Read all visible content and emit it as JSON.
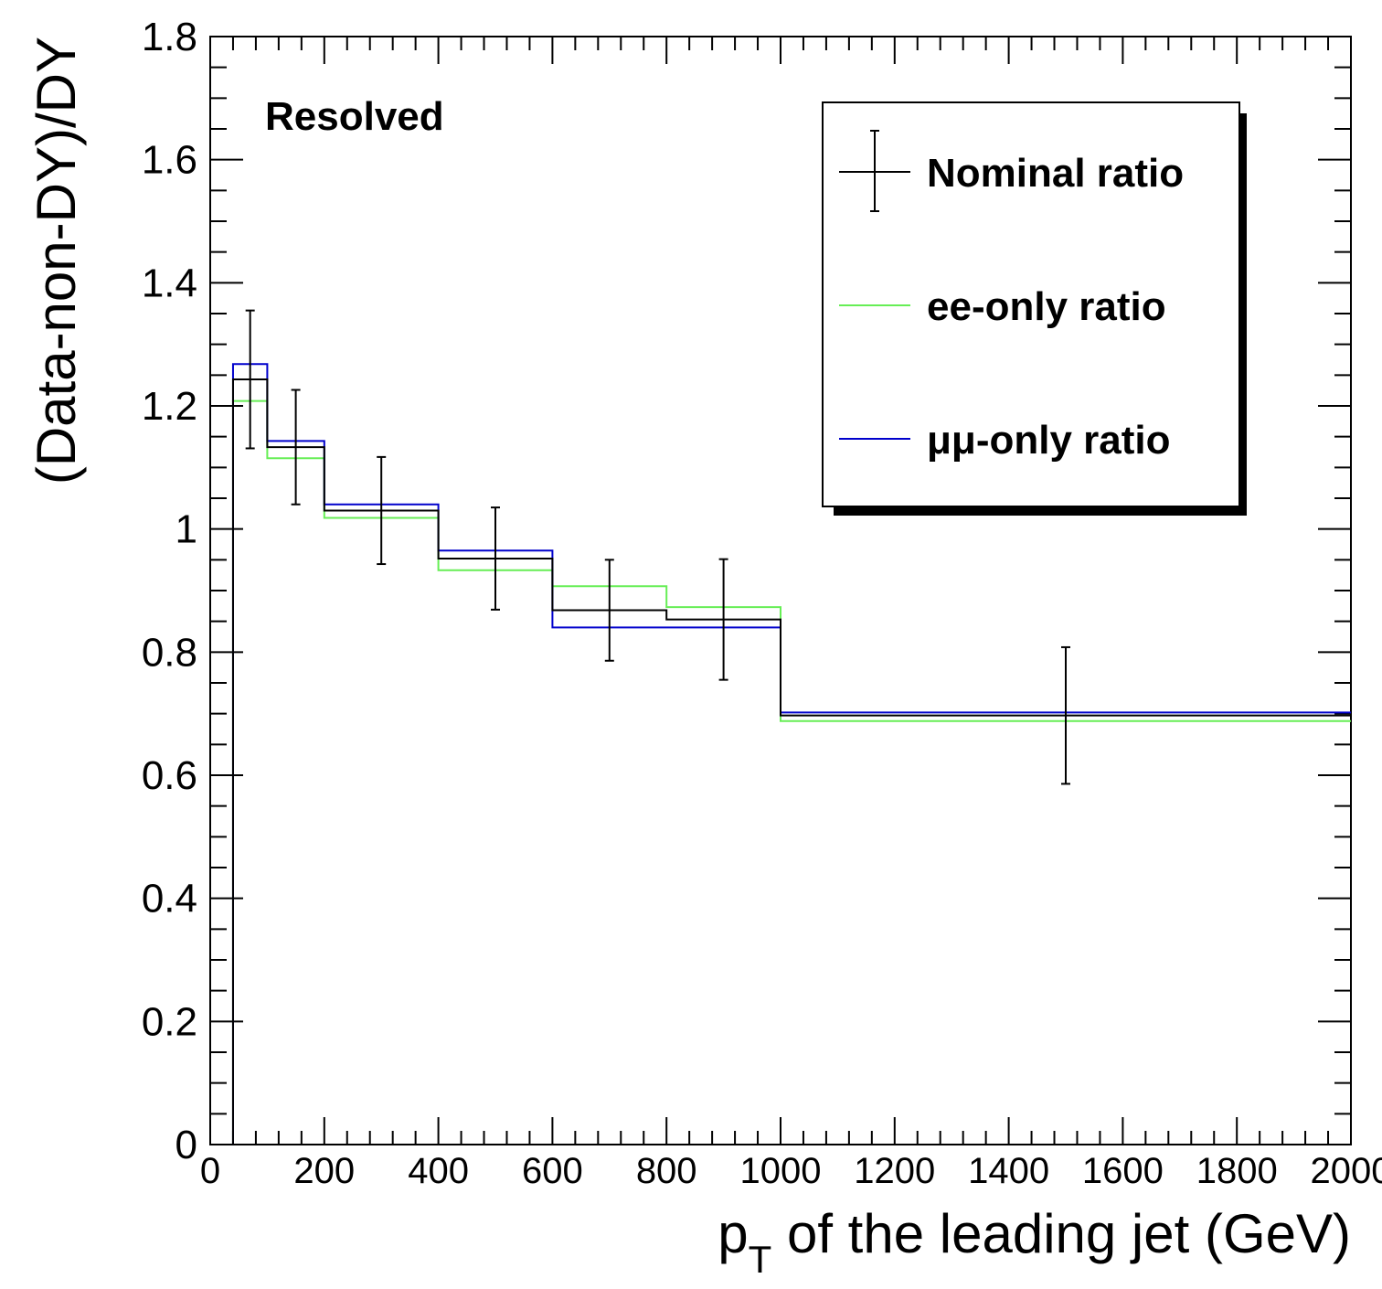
{
  "chart_data": {
    "type": "line",
    "subtype": "step-histogram",
    "xlabel_main": "p",
    "xlabel_sub": "T",
    "xlabel_rest": " of the leading jet (GeV)",
    "ylabel": "(Data-non-DY)/DY",
    "annotation": "Resolved",
    "xlim": [
      0,
      2000
    ],
    "ylim": [
      0,
      1.8
    ],
    "x_ticks": [
      "0",
      "200",
      "400",
      "600",
      "800",
      "1000",
      "1200",
      "1400",
      "1600",
      "1800",
      "2000"
    ],
    "y_ticks": [
      "0",
      "0.2",
      "0.4",
      "0.6",
      "0.8",
      "1",
      "1.2",
      "1.4",
      "1.6",
      "1.8"
    ],
    "bin_edges": [
      40,
      100,
      200,
      400,
      600,
      800,
      1000,
      2000
    ],
    "grid": false,
    "legend_position": "top-right",
    "series": [
      {
        "name": "Nominal ratio",
        "color": "#000000",
        "values": [
          1.243,
          1.133,
          1.03,
          0.952,
          0.868,
          0.853,
          0.697
        ],
        "errors": [
          0.112,
          0.093,
          0.087,
          0.083,
          0.082,
          0.098,
          0.111
        ]
      },
      {
        "name": "ee-only ratio",
        "color": "#66ee55",
        "values": [
          1.208,
          1.115,
          1.018,
          0.933,
          0.907,
          0.873,
          0.688
        ]
      },
      {
        "name": "μμ-only ratio",
        "color": "#0000cc",
        "values": [
          1.268,
          1.143,
          1.04,
          0.965,
          0.84,
          0.84,
          0.702
        ]
      }
    ]
  }
}
